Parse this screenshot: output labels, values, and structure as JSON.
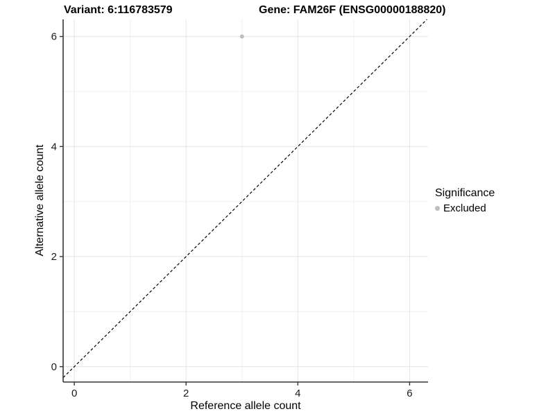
{
  "chart_data": {
    "type": "scatter",
    "titles": {
      "left": "Variant: 6:116783579",
      "right": "Gene: FAM26F (ENSG00000188820)"
    },
    "xlabel": "Reference allele count",
    "ylabel": "Alternative allele count",
    "xlim": [
      -0.2,
      6.33
    ],
    "ylim": [
      -0.28,
      6.31
    ],
    "x_major_ticks": [
      0,
      2,
      4,
      6
    ],
    "y_major_ticks": [
      0,
      2,
      4,
      6
    ],
    "x_minor_ticks": [
      1,
      3,
      5
    ],
    "y_minor_ticks": [
      1,
      3,
      5
    ],
    "grid": "major+minor",
    "series": [
      {
        "name": "Excluded",
        "color": "#bdbdbd",
        "points": [
          {
            "x": 3,
            "y": 6
          }
        ]
      }
    ],
    "identity_line": {
      "slope": 1,
      "intercept": 0,
      "style": "dashed",
      "color": "#000000"
    },
    "legend": {
      "title": "Significance",
      "position": "right",
      "entries": [
        {
          "label": "Excluded",
          "color": "#bdbdbd"
        }
      ]
    },
    "colors": {
      "background": "#ffffff",
      "grid_major": "#e4e4e4",
      "grid_minor": "#f0f0f0",
      "axis_line": "#333333",
      "tick_text": "#1a1a1a",
      "point": "#bdbdbd"
    }
  }
}
